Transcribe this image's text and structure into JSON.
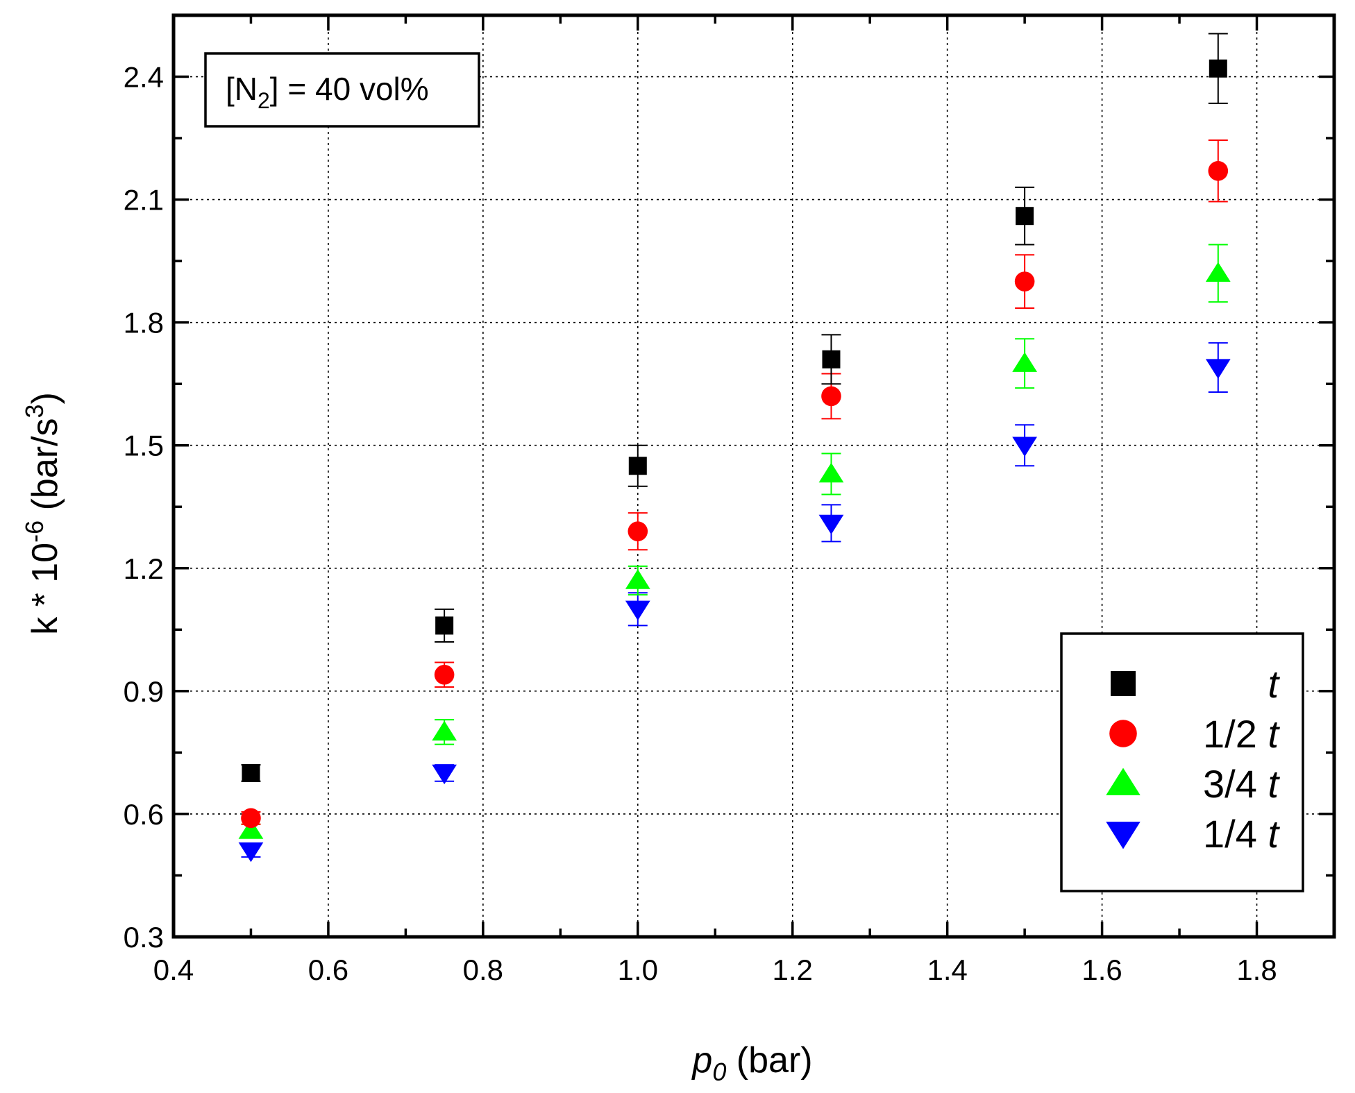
{
  "chart_data": {
    "type": "scatter",
    "title": "",
    "annotation": {
      "prefix": "[N",
      "sub": "2",
      "suffix": "] = 40 vol%"
    },
    "xlabel": {
      "main": "p",
      "sub": "0",
      "suffix": " (bar)"
    },
    "ylabel": {
      "prefix": "k * 10",
      "sup1": "-6",
      "mid": " (bar/s",
      "sup2": "3",
      "suffix": ")"
    },
    "xlim": [
      0.4,
      1.9
    ],
    "ylim": [
      0.3,
      2.55
    ],
    "xticks": [
      "0.4",
      "0.6",
      "0.8",
      "1.0",
      "1.2",
      "1.4",
      "1.6",
      "1.8"
    ],
    "yticks": [
      "0.3",
      "0.6",
      "0.9",
      "1.2",
      "1.5",
      "1.8",
      "2.1",
      "2.4"
    ],
    "grid": true,
    "legend_position": "bottom-right",
    "x": [
      0.5,
      0.75,
      1.0,
      1.25,
      1.5,
      1.75
    ],
    "series": [
      {
        "name": "t",
        "legend_num": "",
        "legend_t": "t",
        "marker": "square",
        "color": "#000000",
        "values": [
          0.7,
          1.06,
          1.45,
          1.71,
          2.06,
          2.42
        ],
        "errors": [
          0.02,
          0.04,
          0.05,
          0.06,
          0.07,
          0.085
        ]
      },
      {
        "name": "1/2 t",
        "legend_num": "1/2",
        "legend_t": "t",
        "marker": "circle",
        "color": "#ff0000",
        "values": [
          0.59,
          0.94,
          1.29,
          1.62,
          1.9,
          2.17
        ],
        "errors": [
          0.015,
          0.03,
          0.045,
          0.055,
          0.065,
          0.075
        ]
      },
      {
        "name": "3/4 t",
        "legend_num": "3/4",
        "legend_t": "t",
        "marker": "triangle-up",
        "color": "#00ff00",
        "values": [
          0.56,
          0.8,
          1.17,
          1.43,
          1.7,
          1.92
        ],
        "errors": [
          0.015,
          0.03,
          0.035,
          0.05,
          0.06,
          0.07
        ]
      },
      {
        "name": "1/4 t",
        "legend_num": "1/4",
        "legend_t": "t",
        "marker": "triangle-down",
        "color": "#0000ff",
        "values": [
          0.51,
          0.7,
          1.1,
          1.31,
          1.5,
          1.69
        ],
        "errors": [
          0.015,
          0.02,
          0.04,
          0.045,
          0.05,
          0.06
        ]
      }
    ]
  }
}
